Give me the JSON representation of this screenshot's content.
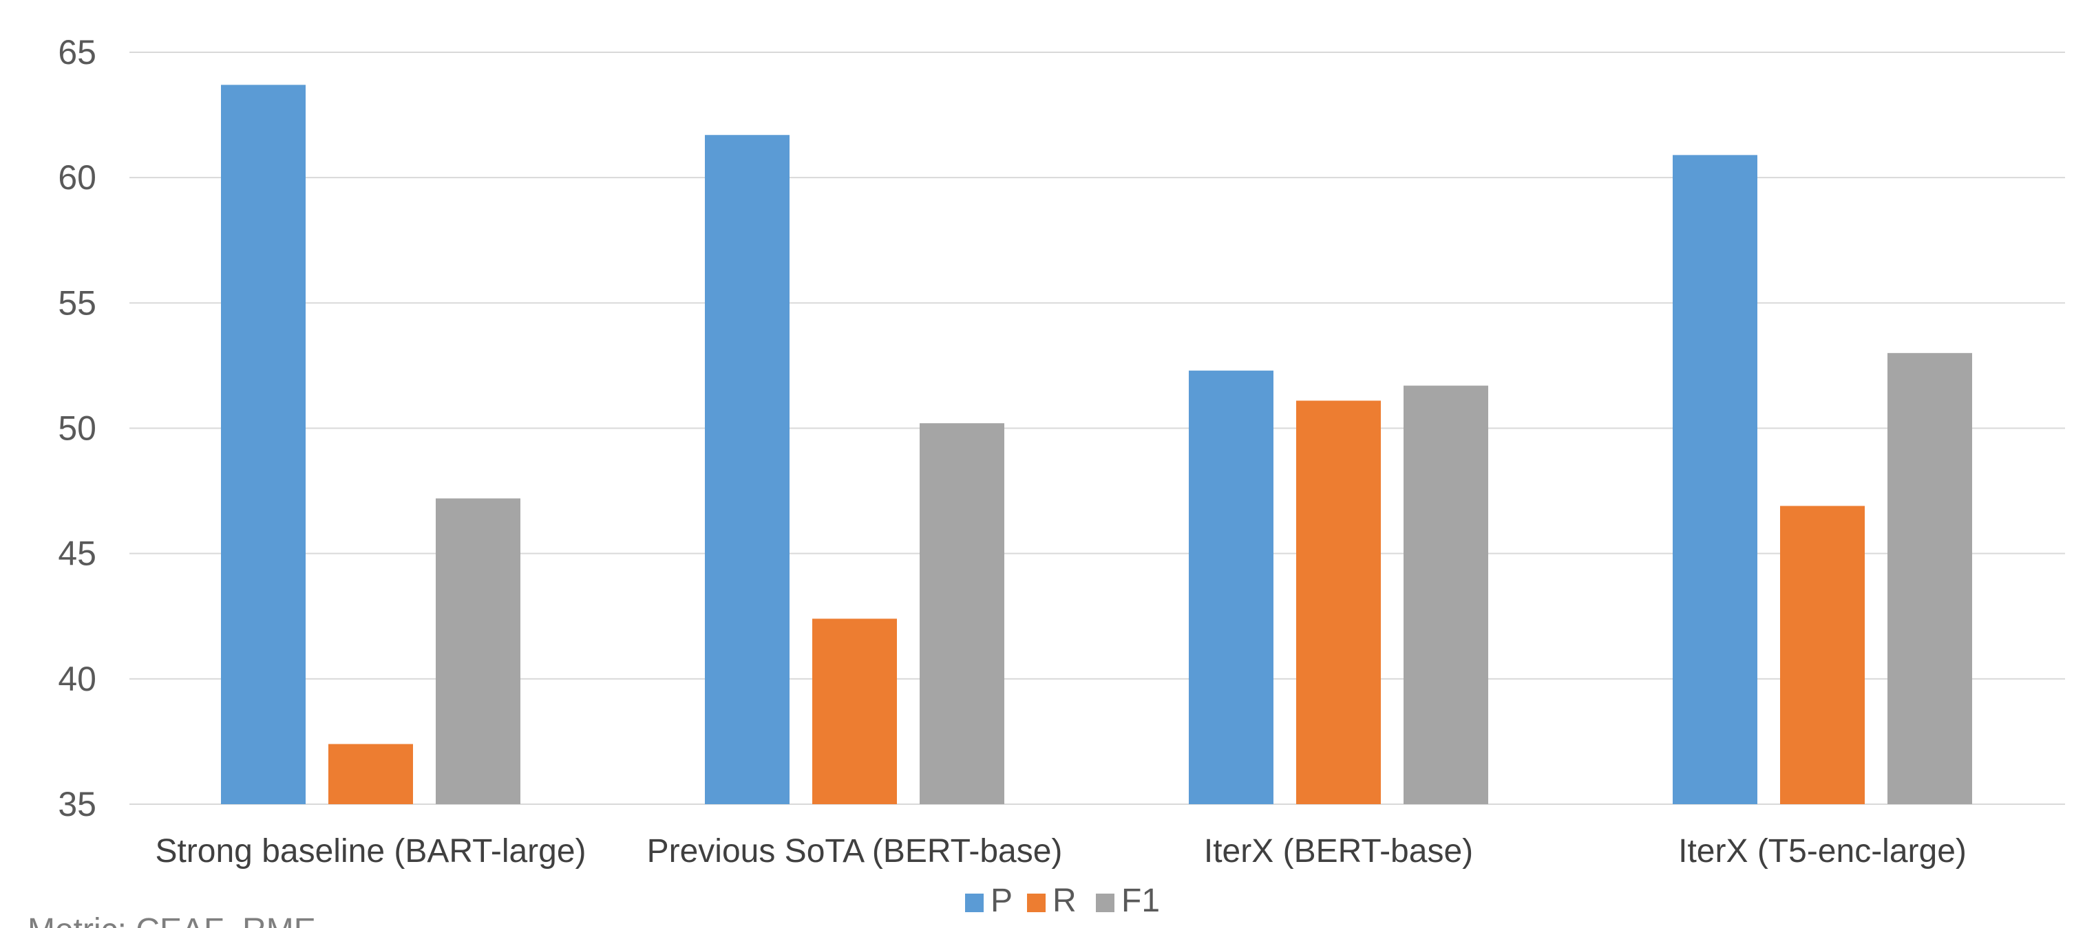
{
  "chart_data": {
    "type": "bar",
    "title": "",
    "xlabel": "",
    "ylabel": "",
    "categories": [
      "Strong baseline (BART-large)",
      "Previous SoTA (BERT-base)",
      "IterX (BERT-base)",
      "IterX (T5-enc-large)"
    ],
    "series": [
      {
        "name": "P",
        "color": "#5B9BD5",
        "values": [
          63.7,
          61.7,
          52.3,
          60.9
        ]
      },
      {
        "name": "R",
        "color": "#ED7D31",
        "values": [
          37.4,
          42.4,
          51.1,
          46.9
        ]
      },
      {
        "name": "F1",
        "color": "#A5A5A5",
        "values": [
          47.2,
          50.2,
          51.7,
          53.0
        ]
      }
    ],
    "ylim": [
      35,
      65
    ],
    "yticks": [
      35,
      40,
      45,
      50,
      55,
      60,
      65
    ],
    "grid": true,
    "legend_position": "bottom",
    "note": "Metric: CEAF_RME",
    "colors": {
      "grid": "#D9D9D9",
      "axis_text": "#595959"
    }
  }
}
